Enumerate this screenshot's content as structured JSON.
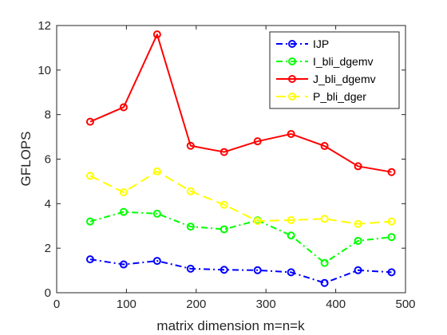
{
  "chart_data": {
    "type": "line",
    "title": "",
    "xlabel": "matrix dimension m=n=k",
    "ylabel": "GFLOPS",
    "xlim": [
      0,
      500
    ],
    "ylim": [
      0,
      12
    ],
    "xticks": [
      0,
      100,
      200,
      300,
      400,
      500
    ],
    "yticks": [
      0,
      2,
      4,
      6,
      8,
      10,
      12
    ],
    "grid": false,
    "legend_position": "top-right",
    "x": [
      48,
      96,
      144,
      192,
      240,
      288,
      336,
      384,
      432,
      480
    ],
    "series": [
      {
        "name": "IJP",
        "color": "#0000ff",
        "line_style": "dashdot",
        "marker": "circle",
        "values": [
          1.5,
          1.27,
          1.43,
          1.08,
          1.03,
          1.01,
          0.92,
          0.44,
          1.01,
          0.92
        ]
      },
      {
        "name": "I_bli_dgemv",
        "color": "#00ff00",
        "line_style": "dashdot",
        "marker": "circle",
        "values": [
          3.2,
          3.63,
          3.55,
          2.97,
          2.85,
          3.25,
          2.57,
          1.34,
          2.33,
          2.5
        ]
      },
      {
        "name": "J_bli_dgemv",
        "color": "#ff0000",
        "line_style": "solid",
        "marker": "circle",
        "values": [
          7.68,
          8.33,
          11.6,
          6.6,
          6.32,
          6.8,
          7.13,
          6.59,
          5.68,
          5.42
        ]
      },
      {
        "name": "P_bli_dger",
        "color": "#ffff00",
        "line_style": "dashed",
        "marker": "circle",
        "values": [
          5.25,
          4.51,
          5.45,
          4.56,
          3.95,
          3.22,
          3.26,
          3.32,
          3.09,
          3.2
        ]
      }
    ]
  }
}
